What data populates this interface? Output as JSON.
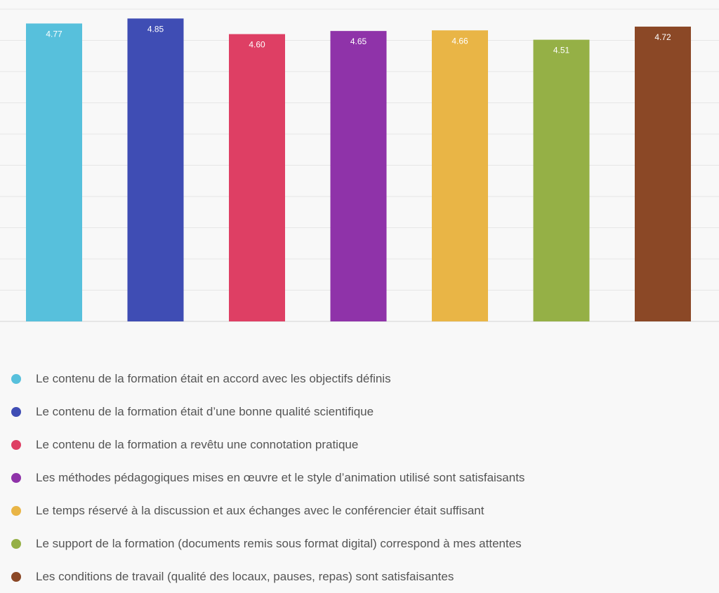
{
  "chart_data": {
    "type": "bar",
    "title": "",
    "xlabel": "",
    "ylabel": "",
    "ylim": [
      0,
      5
    ],
    "grid": true,
    "legend_position": "bottom",
    "categories": [
      "Le contenu de la formation était en accord avec les objectifs définis",
      "Le contenu de la formation était d’une bonne qualité scientifique",
      "Le contenu de la formation a revêtu une connotation pratique",
      "Les méthodes pédagogiques mises en œuvre et le style d’animation utilisé sont satisfaisants",
      "Le temps réservé à la discussion et aux échanges avec le conférencier était suffisant",
      "Le support de la formation (documents remis sous format digital) correspond à mes attentes",
      "Les conditions de travail (qualité des locaux, pauses, repas) sont satisfaisantes"
    ],
    "values": [
      4.77,
      4.85,
      4.6,
      4.65,
      4.66,
      4.51,
      4.72
    ],
    "value_labels": [
      "4.77",
      "4.85",
      "4.60",
      "4.65",
      "4.66",
      "4.51",
      "4.72"
    ],
    "colors": [
      "#57c0dc",
      "#3f4db4",
      "#de3f64",
      "#8f33a9",
      "#e9b546",
      "#95b046",
      "#8b4826"
    ]
  }
}
